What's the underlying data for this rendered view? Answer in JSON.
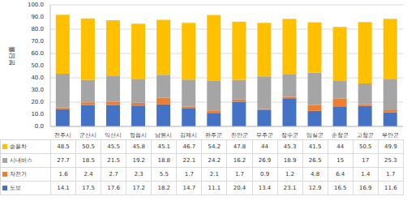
{
  "chart_data": {
    "type": "bar",
    "stacked": true,
    "grid": true,
    "y_label": "분담률",
    "categories": [
      "전주시",
      "군산시",
      "익산시",
      "정읍시",
      "남원시",
      "김제시",
      "완주군",
      "진안군",
      "무주군",
      "장수군",
      "임실군",
      "순창군",
      "고창군",
      "부안군"
    ],
    "series": [
      {
        "name": "도보",
        "color": "#4472c4",
        "values": [
          14.1,
          17.5,
          17.6,
          17.2,
          18.2,
          14.7,
          11.1,
          20.4,
          13.4,
          23.1,
          12.9,
          16.5,
          16.9,
          11.6
        ]
      },
      {
        "name": "자전거",
        "color": "#ed7d31",
        "values": [
          1.6,
          2.4,
          2.7,
          2.3,
          5.5,
          1.7,
          2.1,
          1.7,
          0.9,
          1.2,
          4.8,
          6.4,
          1.4,
          1.7
        ]
      },
      {
        "name": "시내버스",
        "color": "#a5a5a5",
        "values": [
          27.7,
          18.5,
          21.5,
          19.2,
          18.8,
          22.1,
          24.2,
          16.2,
          26.9,
          18.9,
          26.5,
          15.0,
          17.0,
          25.3
        ]
      },
      {
        "name": "승용차",
        "color": "#ffc000",
        "values": [
          48.5,
          50.5,
          45.5,
          45.8,
          45.1,
          46.7,
          54.2,
          47.8,
          44.0,
          45.3,
          41.5,
          44.0,
          50.5,
          49.9
        ]
      }
    ],
    "ylim": [
      0,
      100
    ],
    "yticks": [
      {
        "value": 0,
        "label": "0.0"
      },
      {
        "value": 10,
        "label": "10.0"
      },
      {
        "value": 20,
        "label": "20.0"
      },
      {
        "value": 30,
        "label": "30.0"
      },
      {
        "value": 40,
        "label": "40.0"
      },
      {
        "value": 50,
        "label": "50.0"
      },
      {
        "value": 60,
        "label": "60.0"
      },
      {
        "value": 70,
        "label": "70.0"
      },
      {
        "value": 80,
        "label": "80.0"
      },
      {
        "value": 90,
        "label": "90.0"
      },
      {
        "value": 100,
        "label": "100.0"
      }
    ]
  }
}
